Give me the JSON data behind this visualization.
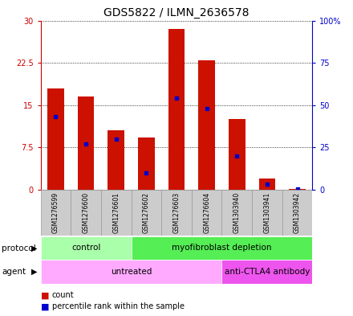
{
  "title": "GDS5822 / ILMN_2636578",
  "samples": [
    "GSM1276599",
    "GSM1276600",
    "GSM1276601",
    "GSM1276602",
    "GSM1276603",
    "GSM1276604",
    "GSM1303940",
    "GSM1303941",
    "GSM1303942"
  ],
  "count_values": [
    18.0,
    16.5,
    10.5,
    9.2,
    28.5,
    23.0,
    12.5,
    2.0,
    0.05
  ],
  "percentile_values": [
    43,
    27,
    30,
    10,
    54,
    48,
    20,
    3,
    0.5
  ],
  "left_yticks": [
    0,
    7.5,
    15,
    22.5,
    30
  ],
  "left_yticklabels": [
    "0",
    "7.5",
    "15",
    "22.5",
    "30"
  ],
  "right_yticks": [
    0,
    25,
    50,
    75,
    100
  ],
  "right_yticklabels": [
    "0",
    "25",
    "50",
    "75",
    "100%"
  ],
  "left_ylim": [
    0,
    30
  ],
  "right_ylim": [
    0,
    100
  ],
  "left_axis_color": "#cc0000",
  "right_axis_color": "#0000cc",
  "bar_color": "#cc1100",
  "percentile_color": "#0000cc",
  "protocol_groups": [
    {
      "label": "control",
      "start": 0,
      "end": 3,
      "color": "#aaffaa"
    },
    {
      "label": "myofibroblast depletion",
      "start": 3,
      "end": 9,
      "color": "#55ee55"
    }
  ],
  "agent_groups": [
    {
      "label": "untreated",
      "start": 0,
      "end": 6,
      "color": "#ffaaff"
    },
    {
      "label": "anti-CTLA4 antibody",
      "start": 6,
      "end": 9,
      "color": "#ee55ee"
    }
  ],
  "title_fontsize": 10,
  "tick_fontsize": 7,
  "bar_width": 0.55,
  "background_color": "#ffffff",
  "xlabel_area_bg": "#cccccc",
  "sample_fontsize": 5.5,
  "row_label_fontsize": 7.5,
  "group_label_fontsize": 7.5,
  "legend_fontsize": 7
}
